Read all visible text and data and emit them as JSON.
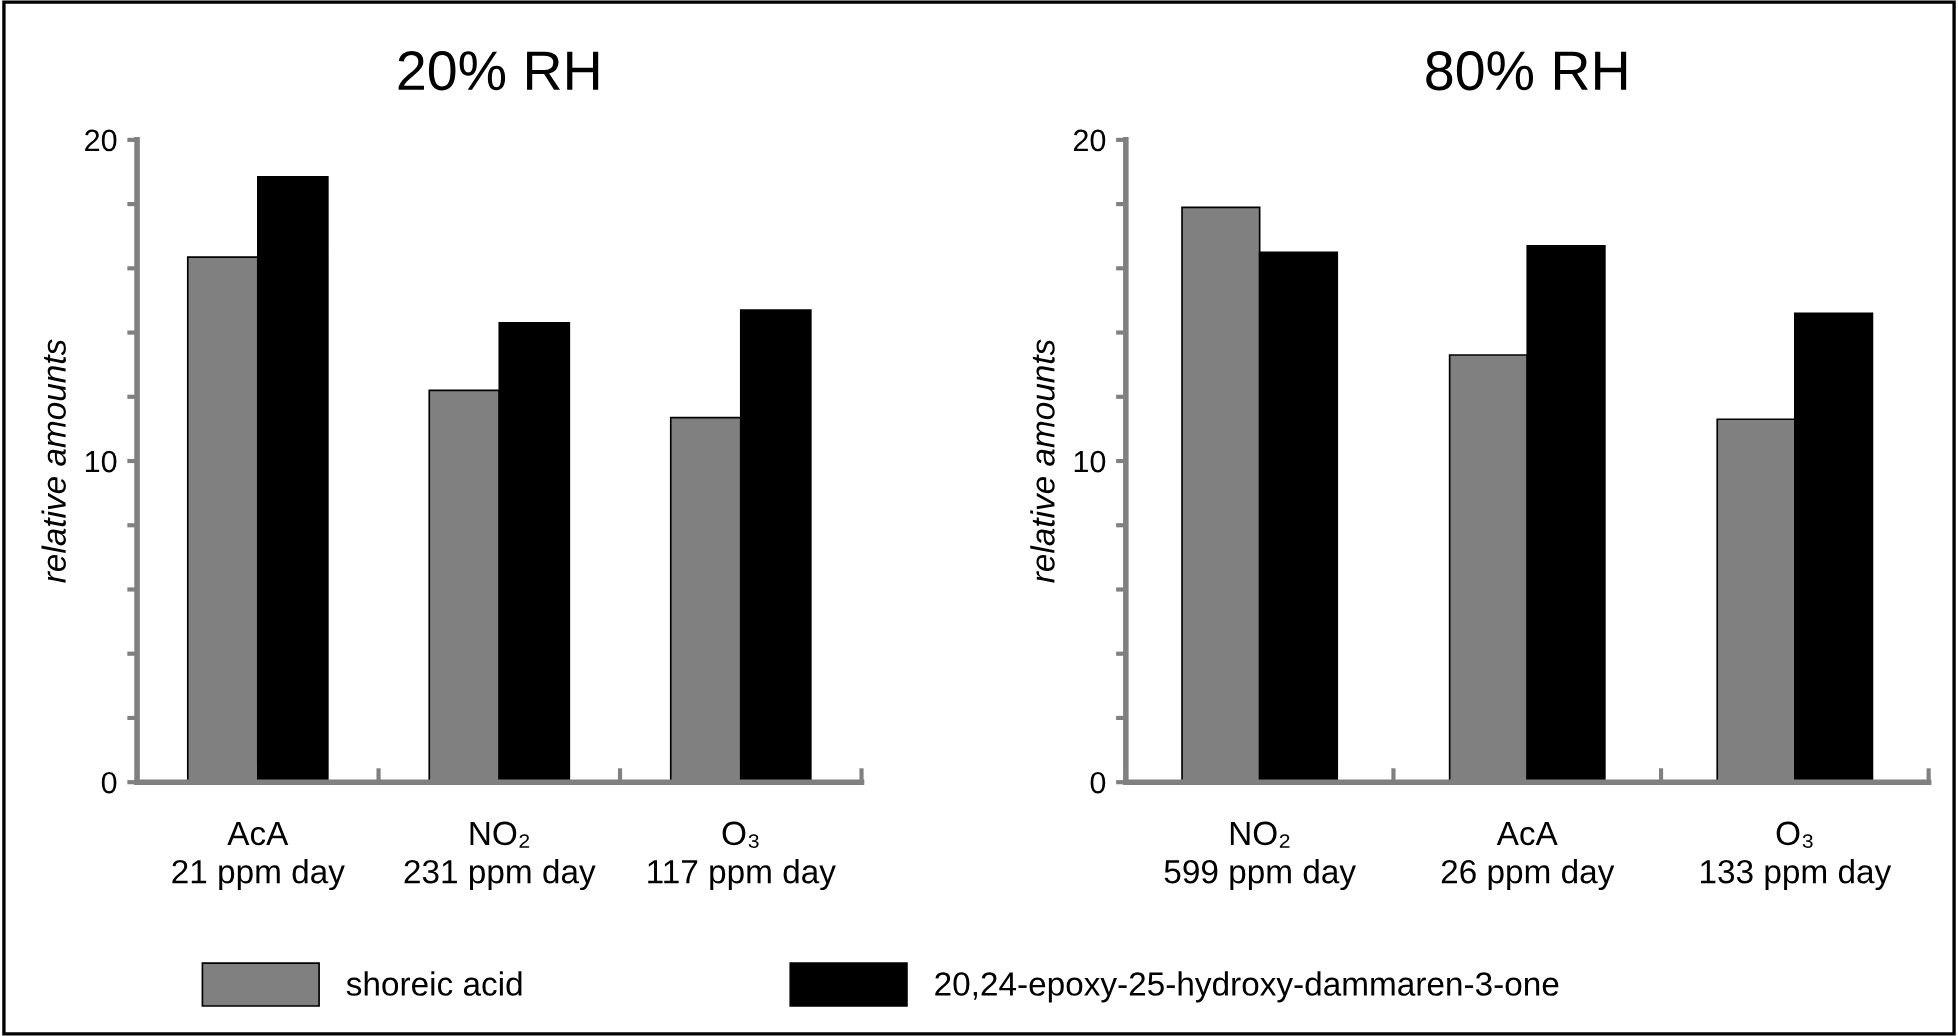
{
  "chart_data": [
    {
      "type": "bar",
      "title": "20% RH",
      "ylabel": "relative amounts",
      "categories": [
        "AcA\n21 ppm day",
        "NO₂\n231 ppm day",
        "O₃\n117 ppm day"
      ],
      "series": [
        {
          "name": "shoreic acid",
          "color": "#808080",
          "values": [
            16.35,
            12.2,
            11.35
          ]
        },
        {
          "name": "20,24-epoxy-25-hydroxy-dammaren-3-one",
          "color": "#000000",
          "values": [
            18.85,
            14.3,
            14.7
          ]
        }
      ],
      "ylim": [
        0,
        20
      ],
      "yticks": [
        0,
        {
          "value": 2,
          "label": null
        },
        {
          "value": 4,
          "label": null
        },
        {
          "value": 6,
          "label": null
        },
        {
          "value": 8,
          "label": null
        },
        10,
        {
          "value": 12,
          "label": null
        },
        {
          "value": 14,
          "label": null
        },
        {
          "value": 16,
          "label": null
        },
        {
          "value": 18,
          "label": null
        },
        20
      ],
      "grid": false,
      "legend": "bottom"
    },
    {
      "type": "bar",
      "title": "80% RH",
      "ylabel": "relative amounts",
      "categories": [
        "NO₂\n599 ppm day",
        "AcA\n26 ppm day",
        "O₃\n133 ppm day"
      ],
      "series": [
        {
          "color": "#808080",
          "values": [
            17.9,
            13.3,
            11.3
          ]
        },
        {
          "color": "#000000",
          "values": [
            16.5,
            16.7,
            14.6
          ]
        }
      ],
      "ylim": [
        0,
        20
      ],
      "yticks": [
        0,
        {
          "value": 2,
          "label": null
        },
        {
          "value": 4,
          "label": null
        },
        {
          "value": 6,
          "label": null
        },
        {
          "value": 8,
          "label": null
        },
        10,
        {
          "value": 12,
          "label": null
        },
        {
          "value": 14,
          "label": null
        },
        {
          "value": 16,
          "label": null
        },
        {
          "value": 18,
          "label": null
        },
        20
      ],
      "grid": false
    }
  ]
}
